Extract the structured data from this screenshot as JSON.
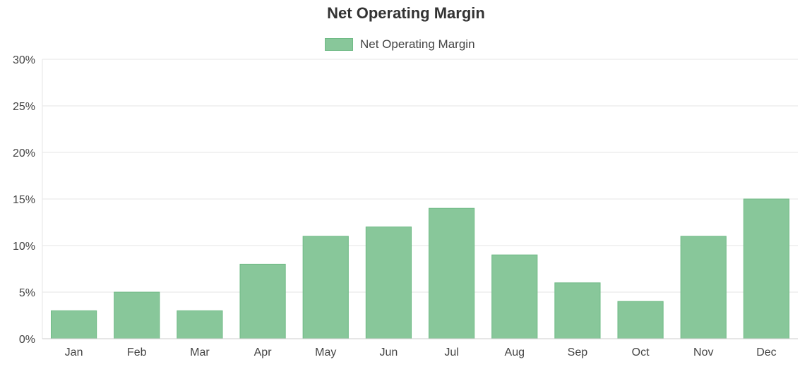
{
  "chart_data": {
    "type": "bar",
    "title": "Net Operating Margin",
    "categories": [
      "Jan",
      "Feb",
      "Mar",
      "Apr",
      "May",
      "Jun",
      "Jul",
      "Aug",
      "Sep",
      "Oct",
      "Nov",
      "Dec"
    ],
    "series": [
      {
        "name": "Net Operating Margin",
        "values": [
          3,
          5,
          3,
          8,
          11,
          12,
          14,
          9,
          6,
          4,
          11,
          15
        ]
      }
    ],
    "ylim": [
      0,
      30
    ],
    "y_ticks": [
      0,
      5,
      10,
      15,
      20,
      25,
      30
    ],
    "y_tick_labels": [
      "0%",
      "5%",
      "10%",
      "15%",
      "20%",
      "25%",
      "30%"
    ],
    "grid": true,
    "legend_position": "top-center",
    "colors": {
      "bar_fill": "#88c79a",
      "bar_stroke": "#6fba85",
      "grid": "#e6e6e6",
      "axis": "#cccccc"
    }
  }
}
